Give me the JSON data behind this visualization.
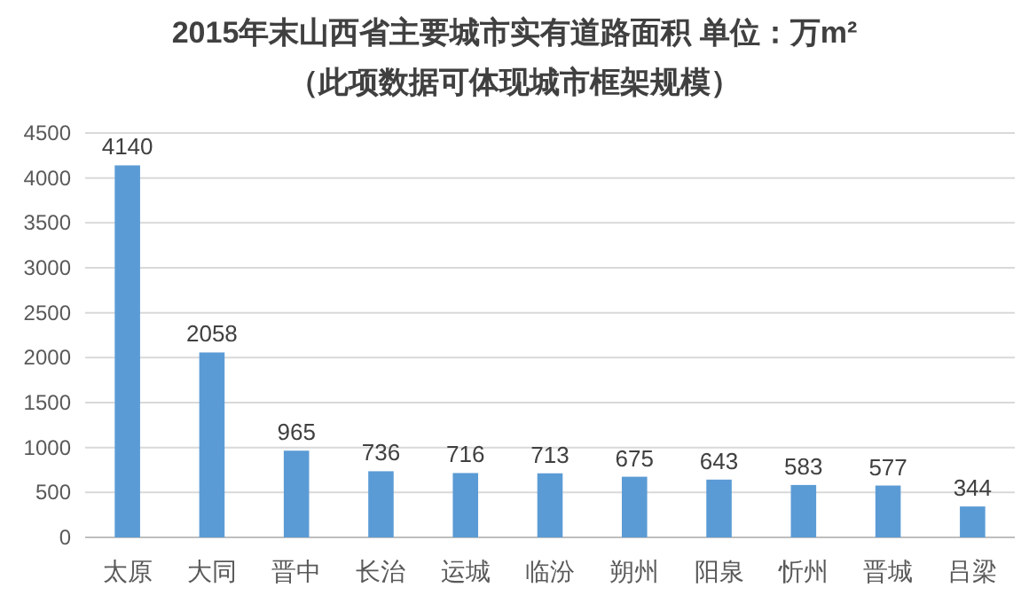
{
  "chart_data": {
    "type": "bar",
    "title": "2015年末山西省主要城市实有道路面积 单位：万m²",
    "subtitle": "（此项数据可体现城市框架规模）",
    "categories": [
      "太原",
      "大同",
      "晋中",
      "长治",
      "运城",
      "临汾",
      "朔州",
      "阳泉",
      "忻州",
      "晋城",
      "吕梁"
    ],
    "values": [
      4140,
      2058,
      965,
      736,
      716,
      713,
      675,
      643,
      583,
      577,
      344
    ],
    "color": "#5b9bd5",
    "ylim": [
      0,
      4500
    ],
    "yticks": [
      0,
      500,
      1000,
      1500,
      2000,
      2500,
      3000,
      3500,
      4000,
      4500
    ],
    "grid": "y",
    "data_labels": true
  }
}
